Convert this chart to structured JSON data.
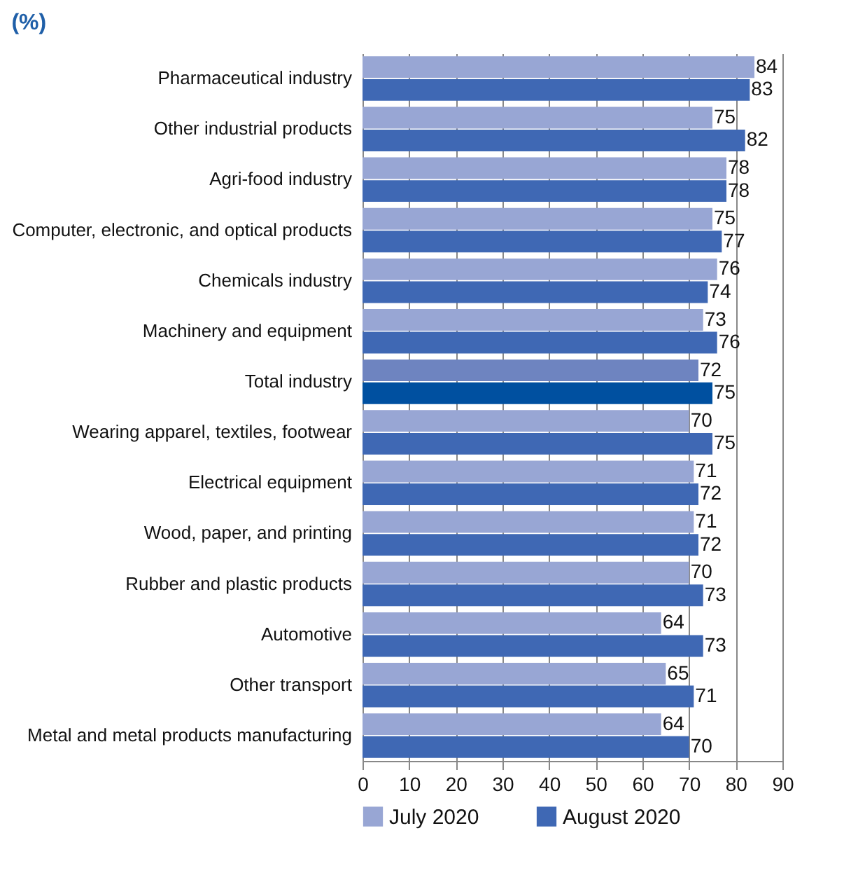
{
  "chart_data": {
    "type": "bar",
    "orientation": "horizontal",
    "title": "(%)",
    "categories": [
      "Pharmaceutical industry",
      "Other industrial products",
      "Agri-food industry",
      "Computer, electronic, and optical products",
      "Chemicals industry",
      "Machinery and equipment",
      "Total industry",
      "Wearing apparel, textiles, footwear",
      "Electrical equipment",
      "Wood, paper, and printing",
      "Rubber and plastic products",
      "Automotive",
      "Other transport",
      "Metal and metal products manufacturing"
    ],
    "series": [
      {
        "name": "July 2020",
        "color": "#98a6d4",
        "colors": [
          "#98a6d4",
          "#98a6d4",
          "#98a6d4",
          "#98a6d4",
          "#98a6d4",
          "#98a6d4",
          "#6e84c0",
          "#98a6d4",
          "#98a6d4",
          "#98a6d4",
          "#98a6d4",
          "#98a6d4",
          "#98a6d4",
          "#98a6d4"
        ],
        "values": [
          84,
          75,
          78,
          75,
          76,
          73,
          72,
          70,
          71,
          71,
          70,
          64,
          65,
          64
        ]
      },
      {
        "name": "August 2020",
        "color": "#3f68b4",
        "colors": [
          "#3f68b4",
          "#3f68b4",
          "#3f68b4",
          "#3f68b4",
          "#3f68b4",
          "#3f68b4",
          "#0050a0",
          "#3f68b4",
          "#3f68b4",
          "#3f68b4",
          "#3f68b4",
          "#3f68b4",
          "#3f68b4",
          "#3f68b4"
        ],
        "values": [
          83,
          82,
          78,
          77,
          74,
          76,
          75,
          75,
          72,
          72,
          73,
          73,
          71,
          70
        ]
      }
    ],
    "xlim": [
      0,
      90
    ],
    "xticks": [
      0,
      10,
      20,
      30,
      40,
      50,
      60,
      70,
      80,
      90
    ],
    "grid": "x",
    "legend": "bottom",
    "data_labels": true
  }
}
